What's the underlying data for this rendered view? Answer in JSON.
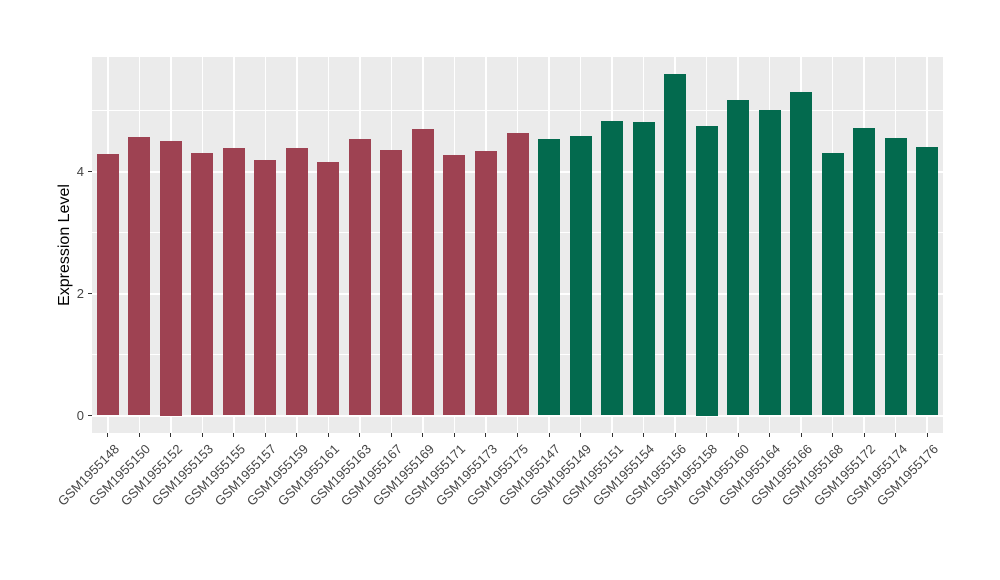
{
  "chart_data": {
    "type": "bar",
    "title": "",
    "xlabel": "",
    "ylabel": "Expression Level",
    "ylim": [
      -0.29,
      5.88
    ],
    "yticks": [
      0,
      2,
      4
    ],
    "grid_major_y": [
      0,
      2,
      4
    ],
    "grid_minor_y": [
      1,
      3,
      5
    ],
    "legend_position": "none",
    "panel_background": "#EBEBEB",
    "grid_color": "#FFFFFF",
    "tick_color": "#333333",
    "tick_label_color": "#454545",
    "groups": [
      {
        "name": "group-1-maroon",
        "color": "#9E4252"
      },
      {
        "name": "group-2-green",
        "color": "#036A4E"
      }
    ],
    "categories": [
      "GSM1955148",
      "GSM1955150",
      "GSM1955152",
      "GSM1955153",
      "GSM1955155",
      "GSM1955157",
      "GSM1955159",
      "GSM1955161",
      "GSM1955163",
      "GSM1955167",
      "GSM1955169",
      "GSM1955171",
      "GSM1955173",
      "GSM1955175",
      "GSM1955147",
      "GSM1955149",
      "GSM1955151",
      "GSM1955154",
      "GSM1955156",
      "GSM1955158",
      "GSM1955160",
      "GSM1955164",
      "GSM1955166",
      "GSM1955168",
      "GSM1955172",
      "GSM1955174",
      "GSM1955176"
    ],
    "values": [
      4.28,
      4.56,
      4.5,
      4.31,
      4.39,
      4.19,
      4.39,
      4.16,
      4.54,
      4.36,
      4.69,
      4.27,
      4.33,
      4.63,
      4.54,
      4.58,
      4.83,
      4.81,
      5.6,
      4.75,
      5.17,
      5.01,
      5.3,
      4.3,
      4.71,
      4.55,
      4.4
    ],
    "group_index": [
      0,
      0,
      0,
      0,
      0,
      0,
      0,
      0,
      0,
      0,
      0,
      0,
      0,
      0,
      1,
      1,
      1,
      1,
      1,
      1,
      1,
      1,
      1,
      1,
      1,
      1,
      1
    ]
  }
}
